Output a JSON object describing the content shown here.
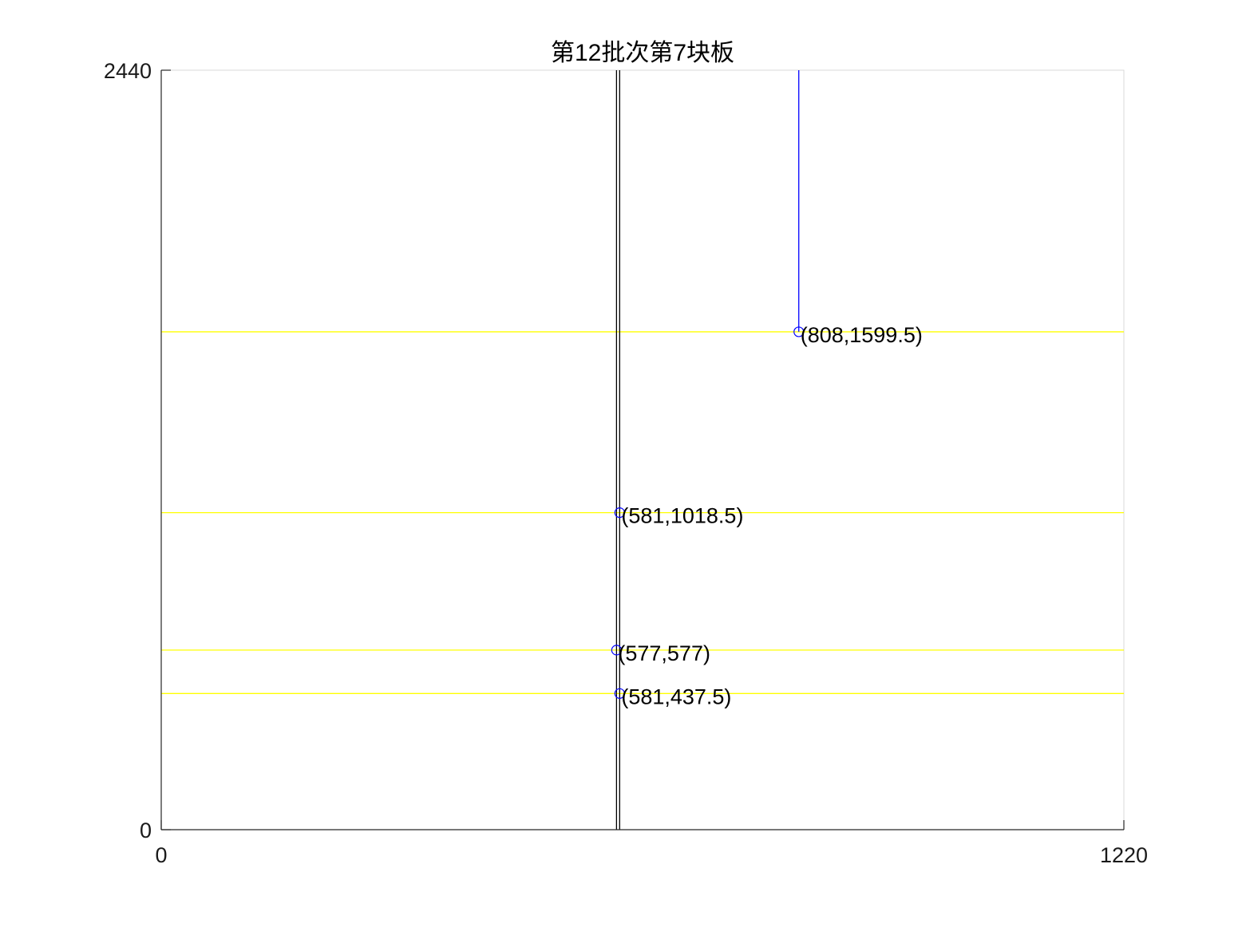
{
  "chart_data": {
    "type": "line",
    "title": "第12批次第7块板",
    "xlabel": "",
    "ylabel": "",
    "xlim": [
      0,
      1220
    ],
    "ylim": [
      0,
      2440
    ],
    "x_ticks": [
      "0",
      "1220"
    ],
    "y_ticks": [
      "0",
      "2440"
    ],
    "grid": false,
    "legend": "none",
    "colors": {
      "cut_line_vertical": "#000000",
      "cut_line_horizontal": "#ffff00",
      "current_cut": "#0000ff",
      "point_marker": "#0000ff",
      "axis": "#262626",
      "box": "#d9d9d9"
    },
    "vertical_cuts": [
      577,
      581
    ],
    "horizontal_cuts": [
      1599.5,
      1018.5,
      577,
      437.5
    ],
    "current_cut": {
      "x": 808,
      "y_from": 1599.5,
      "y_to": 2440
    },
    "points": [
      {
        "x": 808,
        "y": 1599.5,
        "label": "(808,1599.5)"
      },
      {
        "x": 581,
        "y": 1018.5,
        "label": "(581,1018.5)"
      },
      {
        "x": 577,
        "y": 577,
        "label": "(577,577)"
      },
      {
        "x": 581,
        "y": 437.5,
        "label": "(581,437.5)"
      }
    ]
  }
}
